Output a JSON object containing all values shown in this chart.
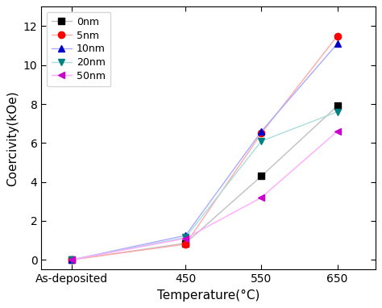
{
  "x_positions": [
    0,
    1.5,
    2.5,
    3.5
  ],
  "x_labels": [
    "As-deposited",
    "450",
    "550",
    "650"
  ],
  "series": [
    {
      "label": "0nm",
      "line_color": "#c0c0c0",
      "marker": "s",
      "marker_color": "#000000",
      "values": [
        0.0,
        0.85,
        4.3,
        7.9
      ]
    },
    {
      "label": "5nm",
      "line_color": "#ffaaaa",
      "marker": "o",
      "marker_color": "#ff0000",
      "values": [
        0.0,
        0.8,
        6.5,
        11.5
      ]
    },
    {
      "label": "10nm",
      "line_color": "#aaaaff",
      "marker": "^",
      "marker_color": "#0000cc",
      "values": [
        0.0,
        1.25,
        6.6,
        11.1
      ]
    },
    {
      "label": "20nm",
      "line_color": "#aadddd",
      "marker": "v",
      "marker_color": "#008080",
      "values": [
        0.0,
        1.15,
        6.1,
        7.6
      ]
    },
    {
      "label": "50nm",
      "line_color": "#ffaaff",
      "marker": "<",
      "marker_color": "#cc00cc",
      "values": [
        0.0,
        1.1,
        3.2,
        6.6
      ]
    }
  ],
  "ylabel": "Coercivity(kOe)",
  "xlabel": "Temperature(°C)",
  "ylim": [
    -0.5,
    13.0
  ],
  "yticks": [
    0,
    2,
    4,
    6,
    8,
    10,
    12
  ],
  "xlim": [
    -0.4,
    4.0
  ],
  "legend_loc": "upper left",
  "markersize": 6,
  "linewidth": 1.0,
  "tick_fontsize": 10,
  "label_fontsize": 11,
  "legend_fontsize": 9
}
